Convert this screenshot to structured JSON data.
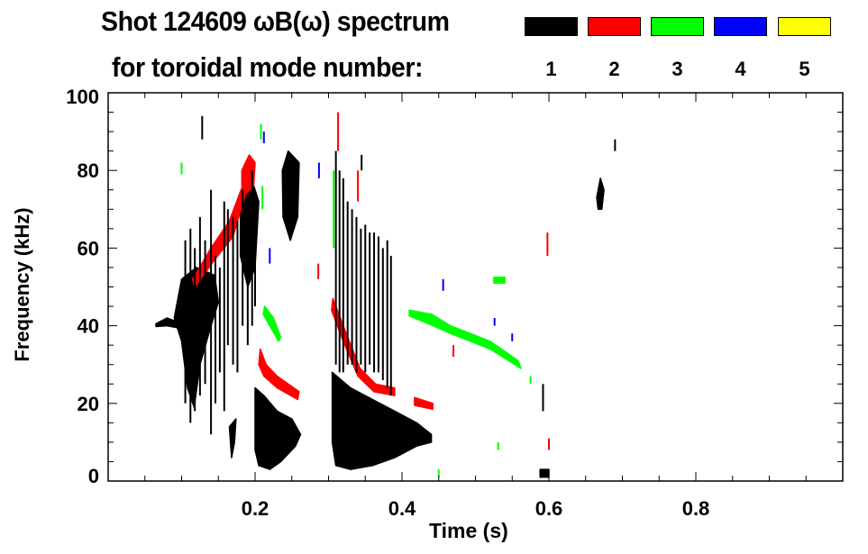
{
  "title": "Shot 124609 ωB(ω) spectrum",
  "subtitle": "for toroidal mode number:",
  "legend": [
    {
      "label": "1",
      "color": "#000000"
    },
    {
      "label": "2",
      "color": "#ff0000"
    },
    {
      "label": "3",
      "color": "#00ff00"
    },
    {
      "label": "4",
      "color": "#0000ff"
    },
    {
      "label": "5",
      "color": "#ffff00"
    }
  ],
  "chart_data": {
    "type": "heatmap",
    "title": "Shot 124609 ωB(ω) spectrum for toroidal mode number",
    "xlabel": "Time (s)",
    "ylabel": "Frequency (kHz)",
    "xlim": [
      0,
      1.0
    ],
    "ylim": [
      0,
      100
    ],
    "xticks": [
      0.2,
      0.4,
      0.6,
      0.8
    ],
    "xtick_labels": [
      "0.2",
      "0.4",
      "0.6",
      "0.8"
    ],
    "yticks": [
      0,
      20,
      40,
      60,
      80,
      100
    ],
    "ytick_labels": [
      "0",
      "20",
      "40",
      "60",
      "80",
      "100"
    ],
    "grid": false,
    "legend_placement": "top-right",
    "regions": [
      {
        "mode": 1,
        "points": [
          [
            0.065,
            40.5
          ],
          [
            0.08,
            42
          ],
          [
            0.094,
            41
          ],
          [
            0.094,
            39.5
          ],
          [
            0.08,
            40
          ],
          [
            0.065,
            39.8
          ]
        ]
      },
      {
        "mode": 1,
        "points": [
          [
            0.09,
            42
          ],
          [
            0.1,
            52
          ],
          [
            0.12,
            55
          ],
          [
            0.145,
            53
          ],
          [
            0.15,
            46
          ],
          [
            0.14,
            40
          ],
          [
            0.125,
            30
          ],
          [
            0.117,
            19
          ],
          [
            0.108,
            24
          ],
          [
            0.1,
            36
          ]
        ]
      },
      {
        "mode": 1,
        "points": [
          [
            0.18,
            72
          ],
          [
            0.195,
            78
          ],
          [
            0.205,
            72
          ],
          [
            0.2,
            55
          ],
          [
            0.19,
            50
          ],
          [
            0.18,
            58
          ]
        ]
      },
      {
        "mode": 1,
        "points": [
          [
            0.237,
            80
          ],
          [
            0.245,
            85
          ],
          [
            0.26,
            82
          ],
          [
            0.258,
            68
          ],
          [
            0.248,
            62
          ],
          [
            0.238,
            68
          ]
        ]
      },
      {
        "mode": 1,
        "points": [
          [
            0.2,
            24
          ],
          [
            0.212,
            22
          ],
          [
            0.23,
            18
          ],
          [
            0.25,
            16
          ],
          [
            0.262,
            12
          ],
          [
            0.255,
            9
          ],
          [
            0.235,
            5
          ],
          [
            0.22,
            3
          ],
          [
            0.205,
            4
          ],
          [
            0.2,
            8
          ]
        ]
      },
      {
        "mode": 1,
        "points": [
          [
            0.165,
            14
          ],
          [
            0.174,
            16
          ],
          [
            0.172,
            10
          ],
          [
            0.168,
            6
          ]
        ]
      },
      {
        "mode": 1,
        "points": [
          [
            0.305,
            28
          ],
          [
            0.33,
            24
          ],
          [
            0.36,
            21
          ],
          [
            0.39,
            18
          ],
          [
            0.42,
            15
          ],
          [
            0.44,
            12
          ],
          [
            0.44,
            10
          ],
          [
            0.42,
            9
          ],
          [
            0.39,
            6
          ],
          [
            0.36,
            4
          ],
          [
            0.33,
            3
          ],
          [
            0.31,
            4
          ],
          [
            0.305,
            10
          ]
        ]
      },
      {
        "mode": 1,
        "points": [
          [
            0.665,
            73
          ],
          [
            0.67,
            78
          ],
          [
            0.675,
            75
          ],
          [
            0.672,
            70
          ],
          [
            0.667,
            70
          ]
        ]
      },
      {
        "mode": 1,
        "points": [
          [
            0.588,
            3
          ],
          [
            0.6,
            3
          ],
          [
            0.6,
            1
          ],
          [
            0.588,
            1
          ]
        ]
      },
      {
        "mode": 2,
        "points": [
          [
            0.115,
            52
          ],
          [
            0.14,
            60
          ],
          [
            0.165,
            67
          ],
          [
            0.183,
            76
          ],
          [
            0.187,
            74
          ],
          [
            0.17,
            63
          ],
          [
            0.145,
            57
          ],
          [
            0.118,
            50
          ]
        ]
      },
      {
        "mode": 2,
        "points": [
          [
            0.182,
            80
          ],
          [
            0.192,
            84
          ],
          [
            0.2,
            82
          ],
          [
            0.198,
            76
          ],
          [
            0.188,
            74
          ],
          [
            0.182,
            76
          ]
        ]
      },
      {
        "mode": 2,
        "points": [
          [
            0.207,
            34
          ],
          [
            0.215,
            30
          ],
          [
            0.23,
            27
          ],
          [
            0.26,
            23
          ],
          [
            0.258,
            21
          ],
          [
            0.23,
            24
          ],
          [
            0.212,
            27
          ],
          [
            0.205,
            30
          ]
        ]
      },
      {
        "mode": 2,
        "points": [
          [
            0.306,
            47
          ],
          [
            0.322,
            39
          ],
          [
            0.343,
            29
          ],
          [
            0.364,
            25
          ],
          [
            0.39,
            24
          ],
          [
            0.39,
            22
          ],
          [
            0.362,
            23
          ],
          [
            0.34,
            27
          ],
          [
            0.32,
            36
          ],
          [
            0.304,
            44
          ]
        ]
      },
      {
        "mode": 2,
        "points": [
          [
            0.417,
            21.5
          ],
          [
            0.442,
            20
          ],
          [
            0.442,
            18.5
          ],
          [
            0.417,
            19.5
          ]
        ]
      },
      {
        "mode": 3,
        "points": [
          [
            0.213,
            45
          ],
          [
            0.225,
            42
          ],
          [
            0.235,
            37
          ],
          [
            0.232,
            36
          ],
          [
            0.22,
            40
          ],
          [
            0.211,
            43
          ]
        ]
      },
      {
        "mode": 3,
        "points": [
          [
            0.41,
            44
          ],
          [
            0.44,
            43
          ],
          [
            0.466,
            40
          ],
          [
            0.52,
            36
          ],
          [
            0.558,
            31
          ],
          [
            0.562,
            29
          ],
          [
            0.52,
            34
          ],
          [
            0.466,
            38
          ],
          [
            0.43,
            41
          ],
          [
            0.41,
            42.5
          ]
        ]
      },
      {
        "mode": 3,
        "points": [
          [
            0.525,
            52.5
          ],
          [
            0.54,
            52.5
          ],
          [
            0.54,
            51
          ],
          [
            0.525,
            51
          ]
        ]
      }
    ],
    "streaks": [
      {
        "mode": 1,
        "t": 0.105,
        "f": [
          20,
          62
        ]
      },
      {
        "mode": 1,
        "t": 0.112,
        "f": [
          15,
          65
        ]
      },
      {
        "mode": 1,
        "t": 0.118,
        "f": [
          18,
          60
        ]
      },
      {
        "mode": 1,
        "t": 0.125,
        "f": [
          22,
          68
        ]
      },
      {
        "mode": 1,
        "t": 0.132,
        "f": [
          25,
          62
        ]
      },
      {
        "mode": 1,
        "t": 0.14,
        "f": [
          12,
          75
        ]
      },
      {
        "mode": 1,
        "t": 0.146,
        "f": [
          20,
          58
        ]
      },
      {
        "mode": 1,
        "t": 0.152,
        "f": [
          28,
          55
        ]
      },
      {
        "mode": 1,
        "t": 0.158,
        "f": [
          18,
          72
        ]
      },
      {
        "mode": 1,
        "t": 0.163,
        "f": [
          35,
          70
        ]
      },
      {
        "mode": 1,
        "t": 0.17,
        "f": [
          30,
          68
        ]
      },
      {
        "mode": 1,
        "t": 0.176,
        "f": [
          28,
          67
        ]
      },
      {
        "mode": 1,
        "t": 0.183,
        "f": [
          40,
          75
        ]
      },
      {
        "mode": 1,
        "t": 0.19,
        "f": [
          35,
          70
        ]
      },
      {
        "mode": 1,
        "t": 0.196,
        "f": [
          40,
          80
        ]
      },
      {
        "mode": 1,
        "t": 0.2,
        "f": [
          45,
          65
        ]
      },
      {
        "mode": 1,
        "t": 0.31,
        "f": [
          30,
          85
        ]
      },
      {
        "mode": 1,
        "t": 0.315,
        "f": [
          28,
          80
        ]
      },
      {
        "mode": 1,
        "t": 0.32,
        "f": [
          28,
          78
        ]
      },
      {
        "mode": 1,
        "t": 0.326,
        "f": [
          30,
          72
        ]
      },
      {
        "mode": 1,
        "t": 0.332,
        "f": [
          30,
          70
        ]
      },
      {
        "mode": 1,
        "t": 0.338,
        "f": [
          28,
          68
        ]
      },
      {
        "mode": 1,
        "t": 0.344,
        "f": [
          30,
          65
        ]
      },
      {
        "mode": 1,
        "t": 0.35,
        "f": [
          28,
          66
        ]
      },
      {
        "mode": 1,
        "t": 0.356,
        "f": [
          30,
          64
        ]
      },
      {
        "mode": 1,
        "t": 0.362,
        "f": [
          28,
          64
        ]
      },
      {
        "mode": 1,
        "t": 0.368,
        "f": [
          28,
          63
        ]
      },
      {
        "mode": 1,
        "t": 0.374,
        "f": [
          26,
          60
        ]
      },
      {
        "mode": 1,
        "t": 0.38,
        "f": [
          24,
          62
        ]
      },
      {
        "mode": 1,
        "t": 0.385,
        "f": [
          22,
          58
        ]
      },
      {
        "mode": 1,
        "t": 0.128,
        "f": [
          88,
          94
        ]
      },
      {
        "mode": 1,
        "t": 0.345,
        "f": [
          80,
          84
        ]
      },
      {
        "mode": 1,
        "t": 0.592,
        "f": [
          18,
          25
        ]
      },
      {
        "mode": 1,
        "t": 0.69,
        "f": [
          85,
          88
        ]
      },
      {
        "mode": 2,
        "t": 0.313,
        "f": [
          85,
          95
        ]
      },
      {
        "mode": 2,
        "t": 0.286,
        "f": [
          52,
          56
        ]
      },
      {
        "mode": 2,
        "t": 0.47,
        "f": [
          32,
          35
        ]
      },
      {
        "mode": 2,
        "t": 0.598,
        "f": [
          58,
          64
        ]
      },
      {
        "mode": 2,
        "t": 0.6,
        "f": [
          8,
          11
        ]
      },
      {
        "mode": 2,
        "t": 0.34,
        "f": [
          72,
          80
        ]
      },
      {
        "mode": 3,
        "t": 0.1,
        "f": [
          79,
          82
        ]
      },
      {
        "mode": 3,
        "t": 0.208,
        "f": [
          88,
          92
        ]
      },
      {
        "mode": 3,
        "t": 0.21,
        "f": [
          70,
          76
        ]
      },
      {
        "mode": 3,
        "t": 0.307,
        "f": [
          60,
          80
        ]
      },
      {
        "mode": 3,
        "t": 0.531,
        "f": [
          8,
          10
        ]
      },
      {
        "mode": 3,
        "t": 0.45,
        "f": [
          1,
          3
        ]
      },
      {
        "mode": 3,
        "t": 0.575,
        "f": [
          25,
          27
        ]
      },
      {
        "mode": 4,
        "t": 0.456,
        "f": [
          49,
          52
        ]
      },
      {
        "mode": 4,
        "t": 0.526,
        "f": [
          40,
          42
        ]
      },
      {
        "mode": 4,
        "t": 0.55,
        "f": [
          36,
          38
        ]
      },
      {
        "mode": 4,
        "t": 0.212,
        "f": [
          87,
          90
        ]
      },
      {
        "mode": 4,
        "t": 0.287,
        "f": [
          78,
          82
        ]
      },
      {
        "mode": 4,
        "t": 0.22,
        "f": [
          56,
          60
        ]
      }
    ]
  }
}
